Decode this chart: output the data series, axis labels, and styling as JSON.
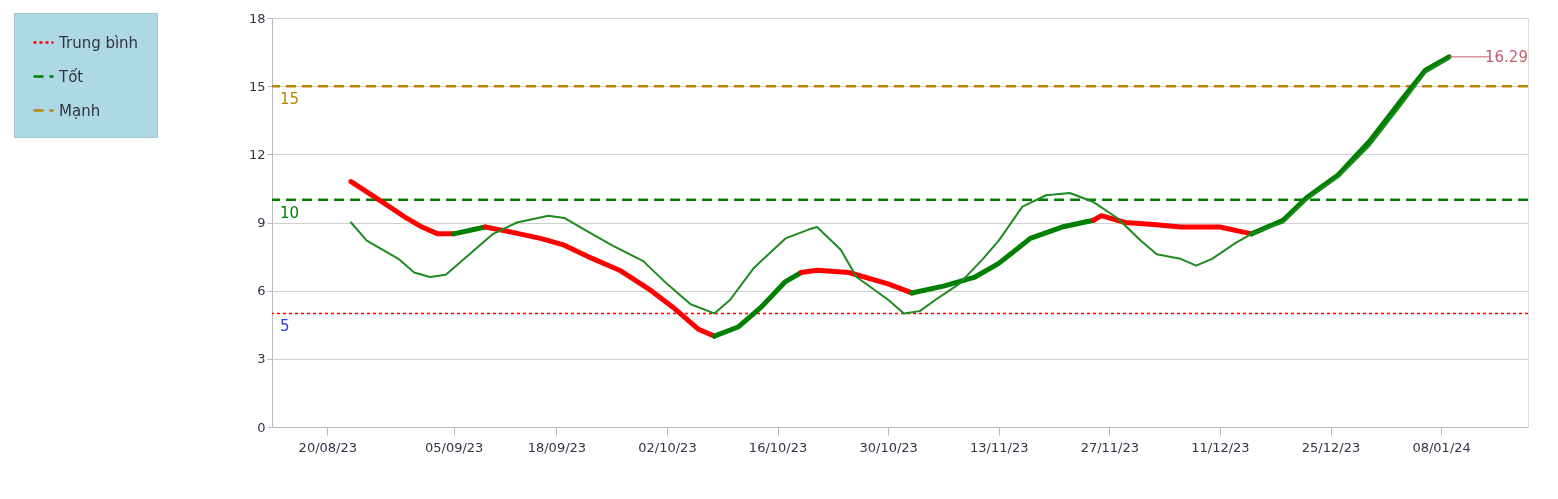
{
  "chart_data": {
    "type": "line",
    "series": [
      {
        "color": "#ff0000",
        "x": [
          "2023-08-23",
          "2023-08-27",
          "2023-08-30",
          "2023-09-01",
          "2023-09-03",
          "2023-09-05"
        ],
        "values": [
          10.8,
          9.9,
          9.2,
          8.8,
          8.5,
          8.5
        ]
      },
      {
        "color": "#008000",
        "x": [
          "2023-09-05",
          "2023-09-09"
        ],
        "values": [
          8.5,
          8.8
        ]
      },
      {
        "color": "#ff0000",
        "x": [
          "2023-09-09",
          "2023-09-12",
          "2023-09-16",
          "2023-09-19",
          "2023-09-22",
          "2023-09-26",
          "2023-09-30",
          "2023-10-03",
          "2023-10-06",
          "2023-10-08"
        ],
        "values": [
          8.8,
          8.6,
          8.3,
          8.0,
          7.5,
          6.9,
          6.0,
          5.2,
          4.3,
          4.0
        ]
      },
      {
        "color": "#008000",
        "x": [
          "2023-10-08",
          "2023-10-11",
          "2023-10-14",
          "2023-10-17",
          "2023-10-19"
        ],
        "values": [
          4.0,
          4.4,
          5.3,
          6.4,
          6.8
        ]
      },
      {
        "color": "#ff0000",
        "x": [
          "2023-10-19",
          "2023-10-21",
          "2023-10-25",
          "2023-10-26",
          "2023-10-30",
          "2023-11-02"
        ],
        "values": [
          6.8,
          6.9,
          6.8,
          6.7,
          6.3,
          5.9
        ]
      },
      {
        "color": "#008000",
        "x": [
          "2023-11-02",
          "2023-11-06",
          "2023-11-10",
          "2023-11-13",
          "2023-11-17",
          "2023-11-21",
          "2023-11-25"
        ],
        "values": [
          5.9,
          6.2,
          6.6,
          7.2,
          8.3,
          8.8,
          9.1
        ]
      },
      {
        "color": "#ff0000",
        "x": [
          "2023-11-25",
          "2023-11-26",
          "2023-11-29",
          "2023-12-03",
          "2023-12-06",
          "2023-12-11",
          "2023-12-15"
        ],
        "values": [
          9.1,
          9.3,
          9.0,
          8.9,
          8.8,
          8.8,
          8.5
        ]
      },
      {
        "color": "#008000",
        "x": [
          "2023-12-15",
          "2023-12-19",
          "2023-12-22",
          "2023-12-26",
          "2023-12-30",
          "2024-01-03",
          "2024-01-06",
          "2024-01-09"
        ],
        "values": [
          8.5,
          9.1,
          10.1,
          11.1,
          12.6,
          14.4,
          15.7,
          16.29
        ]
      },
      {
        "color": "#1f8a1f",
        "x": [
          "2023-08-23",
          "2023-08-25",
          "2023-08-29",
          "2023-08-31",
          "2023-09-02",
          "2023-09-04",
          "2023-09-07",
          "2023-09-10",
          "2023-09-13",
          "2023-09-17",
          "2023-09-19",
          "2023-09-22",
          "2023-09-25",
          "2023-09-29",
          "2023-10-02",
          "2023-10-05",
          "2023-10-08",
          "2023-10-10",
          "2023-10-13",
          "2023-10-17",
          "2023-10-20",
          "2023-10-21",
          "2023-10-24",
          "2023-10-26",
          "2023-10-30",
          "2023-11-01",
          "2023-11-03",
          "2023-11-05",
          "2023-11-08",
          "2023-11-11",
          "2023-11-13",
          "2023-11-16",
          "2023-11-19",
          "2023-11-22",
          "2023-11-25",
          "2023-11-28",
          "2023-12-01",
          "2023-12-03",
          "2023-12-06",
          "2023-12-08",
          "2023-12-10",
          "2023-12-13",
          "2023-12-15",
          "2023-12-19",
          "2023-12-22",
          "2023-12-26",
          "2023-12-30",
          "2024-01-03",
          "2024-01-06",
          "2024-01-09"
        ],
        "values": [
          9.0,
          8.2,
          7.4,
          6.8,
          6.6,
          6.7,
          7.6,
          8.5,
          9.0,
          9.3,
          9.2,
          8.6,
          8.0,
          7.3,
          6.3,
          5.4,
          5.0,
          5.6,
          7.0,
          8.3,
          8.7,
          8.8,
          7.8,
          6.6,
          5.6,
          5.0,
          5.1,
          5.6,
          6.3,
          7.4,
          8.2,
          9.7,
          10.2,
          10.3,
          9.9,
          9.2,
          8.2,
          7.6,
          7.4,
          7.1,
          7.4,
          8.1,
          8.5,
          9.0,
          10.0,
          11.0,
          12.4,
          14.2,
          15.6,
          16.2
        ]
      }
    ],
    "xlim": [
      "2023-08-13",
      "2024-01-19"
    ],
    "xticks": [
      {
        "value": "2023-08-20",
        "label": "20/08/23"
      },
      {
        "value": "2023-09-05",
        "label": "05/09/23"
      },
      {
        "value": "2023-09-18",
        "label": "18/09/23"
      },
      {
        "value": "2023-10-02",
        "label": "02/10/23"
      },
      {
        "value": "2023-10-16",
        "label": "16/10/23"
      },
      {
        "value": "2023-10-30",
        "label": "30/10/23"
      },
      {
        "value": "2023-11-13",
        "label": "13/11/23"
      },
      {
        "value": "2023-11-27",
        "label": "27/11/23"
      },
      {
        "value": "2023-12-11",
        "label": "11/12/23"
      },
      {
        "value": "2023-12-25",
        "label": "25/12/23"
      },
      {
        "value": "2024-01-08",
        "label": "08/01/24"
      }
    ],
    "ylim": [
      0,
      18
    ],
    "yticks": [
      0,
      3,
      6,
      9,
      12,
      15,
      18
    ],
    "grid": "y",
    "legend": "top left",
    "ref_lines": [
      {
        "axis": "y",
        "value": 5,
        "label": "Trung bình",
        "color": "#ff0000",
        "line_style": "dotted"
      },
      {
        "axis": "y",
        "value": 10,
        "label": "Tốt",
        "color": "#008000",
        "line_style": "dashed"
      },
      {
        "axis": "y",
        "value": 15,
        "label": "Mạnh",
        "color": "#b8860b",
        "line_style": "dashed"
      }
    ],
    "annotations": [
      {
        "text": "5",
        "y": 5
      },
      {
        "text": "10",
        "y": 10
      },
      {
        "text": "15",
        "y": 15
      },
      {
        "text": "16.29",
        "x": "2024-01-09",
        "y": 16.29
      }
    ]
  }
}
